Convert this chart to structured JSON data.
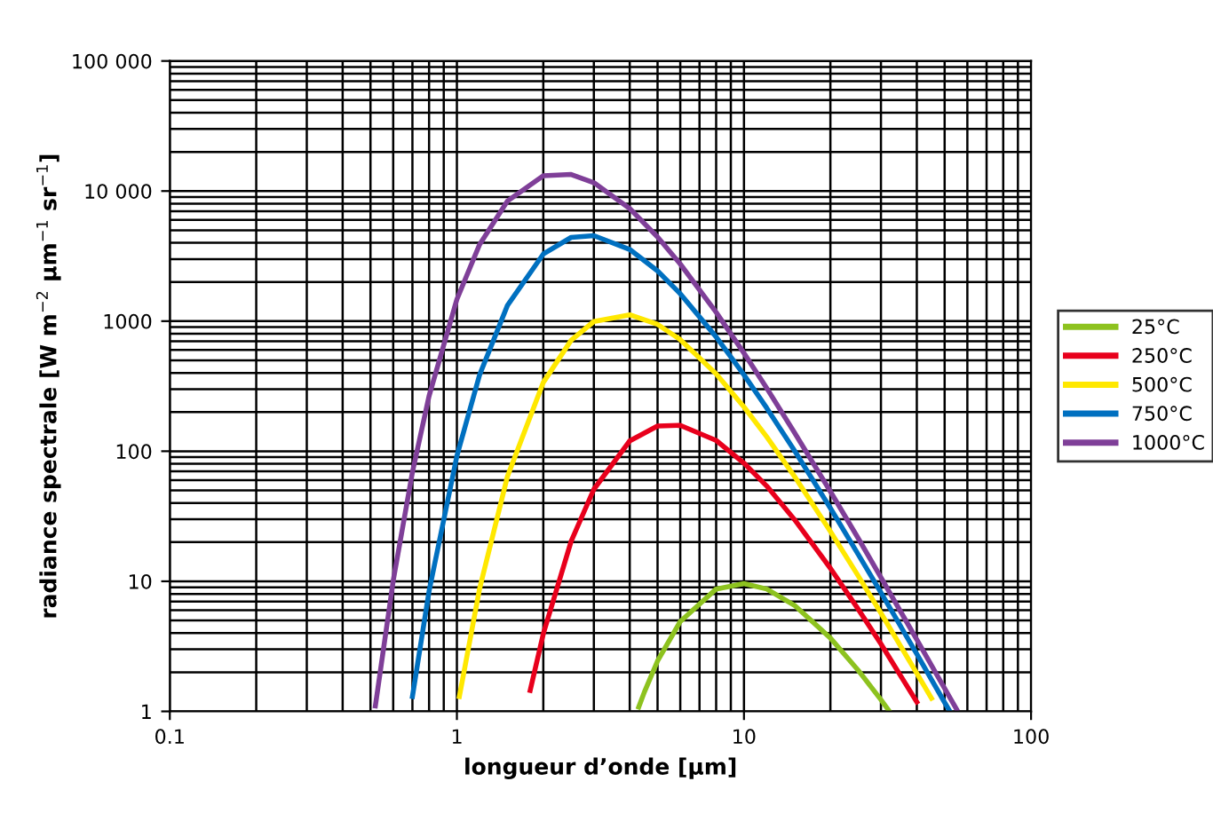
{
  "chart_data": {
    "type": "line",
    "xlabel": "longueur d’onde [µm]",
    "ylabel": "radiance spectrale [W m$^{−2}$ µm$^{−1}$ sr$^{−1}$]",
    "log": "xy",
    "grid": true,
    "legend": "right",
    "line_style": "solid",
    "marker": "none",
    "xlim": [
      0.1,
      100
    ],
    "xticks": [
      0.1,
      1,
      10,
      100
    ],
    "ylim": [
      1,
      100000
    ],
    "yticks": [
      1,
      10,
      100,
      1000,
      {
        "value": 10000,
        "label": "10 000"
      },
      {
        "value": 100000,
        "label": "100 000"
      }
    ],
    "series": [
      {
        "name": "25°C",
        "color": "#8dc21f",
        "x": [
          4.3,
          4.5,
          5,
          6,
          8,
          10,
          12,
          15,
          20,
          25,
          30,
          32
        ],
        "values": [
          1.08,
          1.41,
          2.44,
          4.91,
          8.72,
          9.6,
          8.72,
          6.53,
          3.66,
          2.07,
          1.23,
          1.01
        ]
      },
      {
        "name": "250°C",
        "color": "#e8001c",
        "x": [
          1.8,
          2,
          2.5,
          3,
          4,
          5,
          6,
          8,
          10,
          12,
          15,
          20,
          25,
          30,
          40
        ],
        "values": [
          1.45,
          3.95,
          20.3,
          51,
          120,
          156,
          158,
          121,
          81,
          54,
          29.8,
          12.6,
          6.1,
          3.3,
          1.18
        ]
      },
      {
        "name": "500°C",
        "color": "#ffe800",
        "x": [
          1.02,
          1.2,
          1.5,
          2,
          2.5,
          3,
          4,
          5,
          6,
          8,
          10,
          12,
          15,
          20,
          25,
          30,
          40,
          45
        ],
        "values": [
          1.3,
          8.8,
          64,
          338,
          713,
          993,
          1119,
          944,
          721,
          393,
          219,
          129,
          64,
          24.2,
          11,
          5.7,
          1.96,
          1.26
        ]
      },
      {
        "name": "750°C",
        "color": "#0070c0",
        "x": [
          0.7,
          0.8,
          1,
          1.2,
          1.5,
          2,
          2.5,
          3,
          4,
          5,
          6,
          8,
          10,
          12,
          15,
          20,
          25,
          30,
          40,
          50,
          52
        ],
        "values": [
          1.3,
          8.4,
          92,
          387,
          1321,
          3279,
          4401,
          4542,
          3556,
          2431,
          1625,
          756,
          386,
          215,
          101,
          36.5,
          16.1,
          8.2,
          2.76,
          1.17,
          1.01
        ]
      },
      {
        "name": "1000°C",
        "color": "#7f3f98",
        "x": [
          0.52,
          0.6,
          0.7,
          0.8,
          1,
          1.2,
          1.5,
          2,
          2.5,
          3,
          4,
          5,
          6,
          8,
          10,
          12,
          15,
          20,
          25,
          30,
          40,
          50,
          55
        ],
        "values": [
          1.1,
          10.1,
          69,
          266,
          1472,
          3886,
          8376,
          13129,
          13417,
          11597,
          7328,
          4439,
          2746,
          1170,
          568,
          306,
          139,
          49,
          21.4,
          10.7,
          3.56,
          1.5,
          1.04
        ]
      }
    ]
  }
}
